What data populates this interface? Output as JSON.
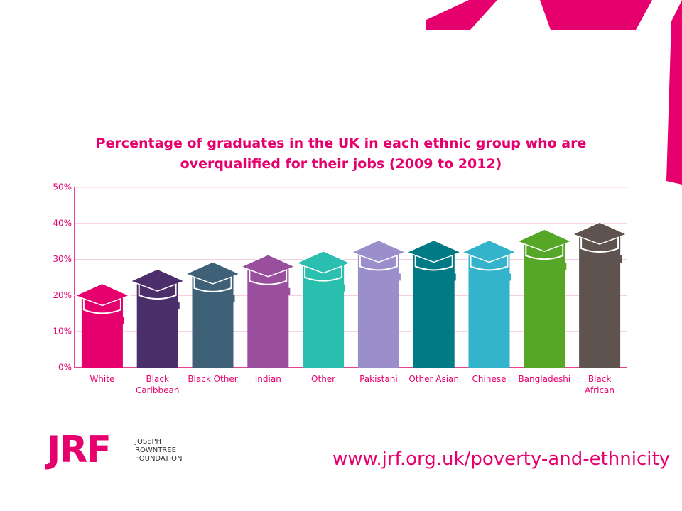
{
  "chart_data": {
    "type": "bar",
    "title": "Percentage of graduates in the UK in each ethnic group who are overqualified for their jobs (2009 to 2012)",
    "categories": [
      "White",
      "Black Caribbean",
      "Black Other",
      "Indian",
      "Other",
      "Pakistani",
      "Other Asian",
      "Chinese",
      "Bangladeshi",
      "Black African"
    ],
    "values": [
      20,
      24,
      26,
      28,
      29,
      32,
      32,
      32,
      35,
      37
    ],
    "colors": [
      "#e6006e",
      "#4b2f6b",
      "#3f6177",
      "#9a4f9e",
      "#2bbfb0",
      "#9b8fcb",
      "#007a84",
      "#33b3cc",
      "#56a628",
      "#5e534f"
    ],
    "ylim": [
      0,
      50
    ],
    "yticks": [
      {
        "value": 0,
        "label": "0%"
      },
      {
        "value": 10,
        "label": "10%"
      },
      {
        "value": 20,
        "label": "20%"
      },
      {
        "value": 30,
        "label": "30%"
      },
      {
        "value": 40,
        "label": "40%"
      },
      {
        "value": 50,
        "label": "50%"
      }
    ],
    "grid": true
  },
  "footer": {
    "logo": "JRF",
    "org": "JOSEPH ROWNTREE FOUNDATION",
    "url": "www.jrf.org.uk/poverty-and-ethnicity"
  }
}
